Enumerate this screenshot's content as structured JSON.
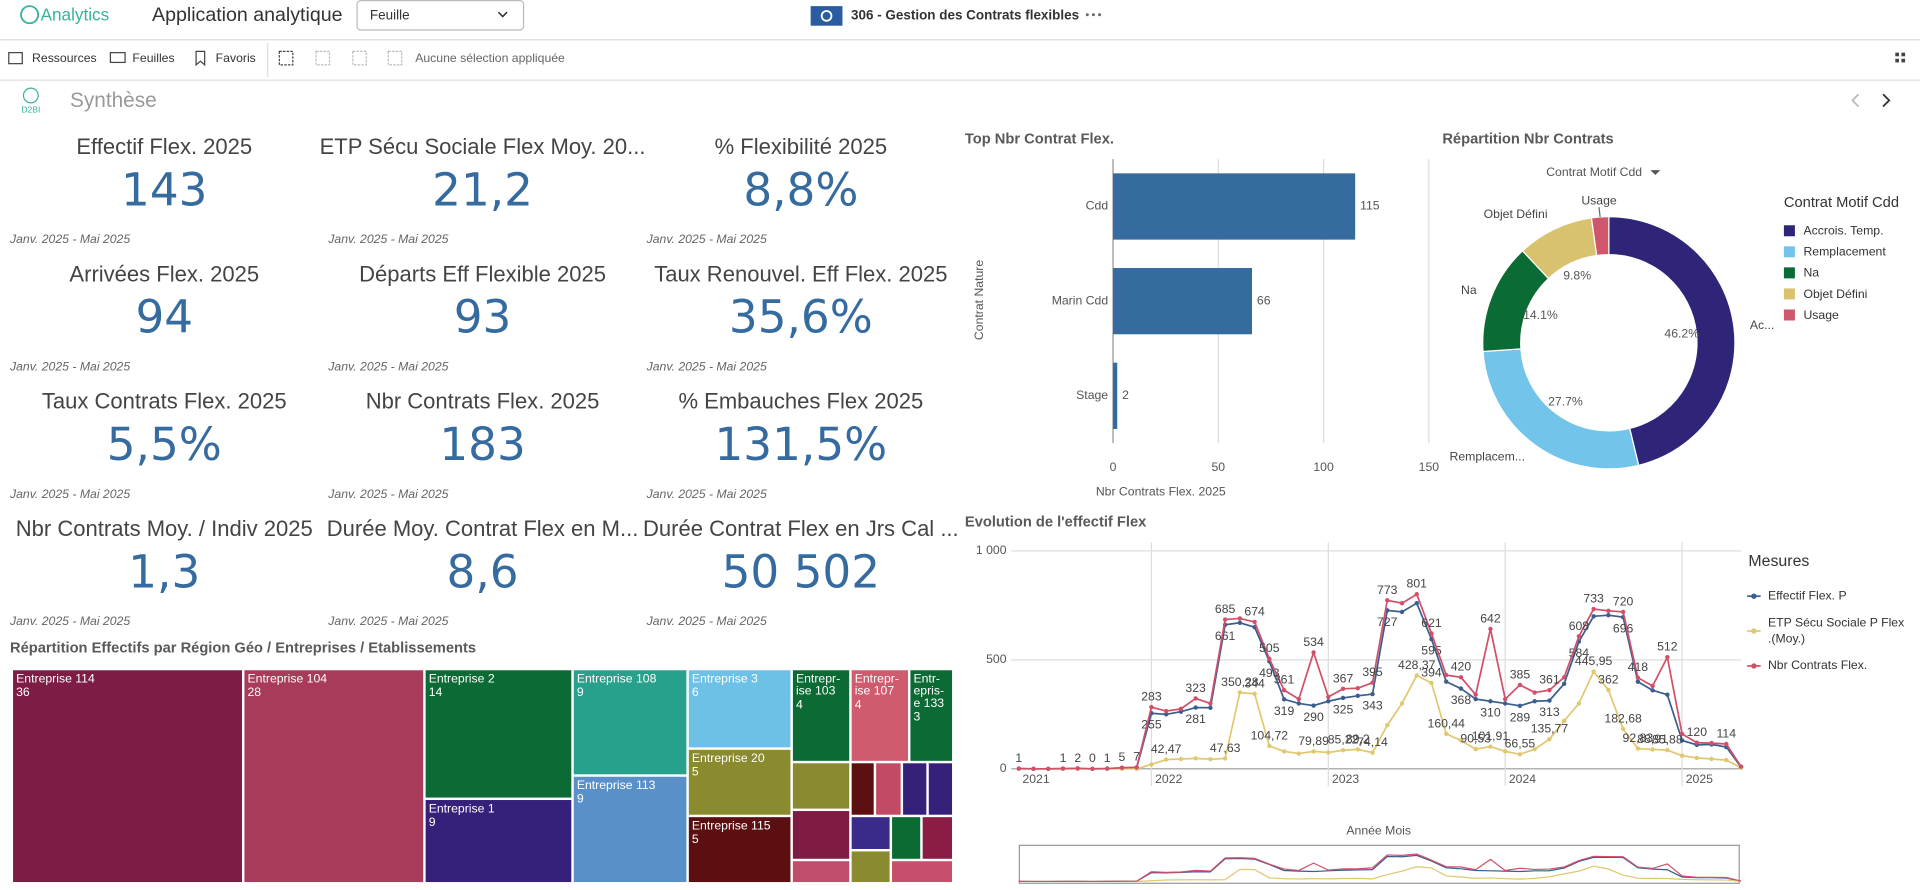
{
  "header": {
    "brand": "Analytics",
    "app": "Application analytique",
    "sheet_select": "Feuille",
    "document": "306 - Gestion des Contrats flexibles"
  },
  "toolbar": {
    "items": [
      "Ressources",
      "Feuilles",
      "Favoris"
    ],
    "selection": "Aucune sélection appliquée"
  },
  "sheet": {
    "logo": "D2BI",
    "title": "Synthèse"
  },
  "kpis": [
    {
      "title": "Effectif Flex. 2025",
      "value": "143",
      "period": "Janv. 2025 - Mai 2025"
    },
    {
      "title": "ETP Sécu Sociale Flex Moy. 20...",
      "value": "21,2",
      "period": "Janv. 2025 - Mai 2025"
    },
    {
      "title": "% Flexibilité 2025",
      "value": "8,8%",
      "period": "Janv. 2025 - Mai 2025"
    },
    {
      "title": "Arrivées Flex. 2025",
      "value": "94",
      "period": "Janv. 2025 - Mai 2025"
    },
    {
      "title": "Départs Eff Flexible 2025",
      "value": "93",
      "period": "Janv. 2025 - Mai 2025"
    },
    {
      "title": "Taux Renouvel. Eff Flex. 2025",
      "value": "35,6%",
      "period": "Janv. 2025 - Mai 2025"
    },
    {
      "title": "Taux Contrats Flex. 2025",
      "value": "5,5%",
      "period": "Janv. 2025 - Mai 2025"
    },
    {
      "title": "Nbr Contrats Flex. 2025",
      "value": "183",
      "period": "Janv. 2025 - Mai 2025"
    },
    {
      "title": "% Embauches Flex 2025",
      "value": "131,5%",
      "period": "Janv. 2025 - Mai 2025"
    },
    {
      "title": "Nbr Contrats Moy. / Indiv 2025",
      "value": "1,3",
      "period": "Janv. 2025 - Mai 2025"
    },
    {
      "title": "Durée Moy. Contrat Flex en M...",
      "value": "8,6",
      "period": "Janv. 2025 - Mai 2025"
    },
    {
      "title": "Durée Contrat Flex en Jrs Cal ...",
      "value": "50 502",
      "period": "Janv. 2025 - Mai 2025"
    }
  ],
  "chart_data": [
    {
      "type": "bar",
      "orientation": "horizontal",
      "title": "Top Nbr Contrat Flex.",
      "categories": [
        "Cdd",
        "Marin Cdd",
        "Stage"
      ],
      "values": [
        115,
        66,
        2
      ],
      "color": "#356b9e",
      "xlim": [
        0,
        150
      ],
      "xticks": [
        0,
        50,
        100,
        150
      ],
      "x_label": "Nbr Contrats Flex. 2025",
      "y_label": "Contrat Nature",
      "grid": true
    },
    {
      "type": "pie",
      "donut": true,
      "title": "Répartition Nbr Contrats",
      "selector": "Contrat Motif Cdd",
      "legend_title": "Contrat Motif Cdd",
      "categories": [
        "Accrois. Temp.",
        "Remplacement",
        "Na",
        "Objet Défini",
        "Usage"
      ],
      "values": [
        46.2,
        27.7,
        14.1,
        9.8,
        2.2
      ],
      "value_labels": [
        "46.2%",
        "27.7%",
        "14.1%",
        "9.8%",
        null
      ],
      "outer_labels": [
        "Ac...",
        "Remplacem...",
        "Na",
        "Objet Défini",
        "Usage"
      ],
      "colors": [
        "#2f2578",
        "#73c4ea",
        "#0b6b35",
        "#d8c26e",
        "#d0566c"
      ]
    },
    {
      "type": "line",
      "title": "Evolution de l'effectif Flex",
      "x_label": "Année Mois",
      "legend_title": "Mesures",
      "categories": [
        "2021",
        null,
        null,
        null,
        null,
        null,
        null,
        null,
        null,
        "2022",
        null,
        null,
        null,
        null,
        null,
        null,
        null,
        null,
        null,
        null,
        null,
        "2023",
        null,
        null,
        null,
        null,
        null,
        null,
        null,
        null,
        null,
        null,
        null,
        "2024",
        null,
        null,
        null,
        null,
        null,
        null,
        null,
        null,
        null,
        null,
        null,
        "2025",
        null,
        null,
        null,
        null
      ],
      "ylim": [
        0,
        1000
      ],
      "yticks": [
        0,
        500,
        {
          "value": 1000,
          "label": "1 000"
        }
      ],
      "grid": true,
      "series": [
        {
          "name": "Effectif Flex. P",
          "color": "#3b5e8c",
          "values": [
            1,
            0,
            0,
            1,
            1,
            0,
            1,
            4,
            5,
            255,
            250,
            262,
            281,
            280,
            661,
            670,
            650,
            493,
            319,
            300,
            290,
            310,
            325,
            335,
            343,
            727,
            720,
            760,
            595,
            400,
            368,
            320,
            310,
            300,
            289,
            310,
            313,
            390,
            584,
            700,
            705,
            696,
            400,
            360,
            340,
            130,
            110,
            112,
            100,
            8
          ],
          "value_labels": [
            null,
            null,
            null,
            null,
            null,
            null,
            null,
            null,
            null,
            "255",
            null,
            null,
            "281",
            null,
            "661",
            null,
            null,
            "493",
            "319",
            null,
            "290",
            null,
            "325",
            null,
            "343",
            "727",
            null,
            null,
            "595",
            null,
            "368",
            null,
            "310",
            null,
            "289",
            null,
            "313",
            null,
            "584",
            null,
            null,
            "696",
            null,
            null,
            null,
            null,
            null,
            null,
            null,
            null
          ]
        },
        {
          "name": "ETP Sécu Sociale P Flex .(Moy.)",
          "color": "#e0c870",
          "values": [
            0,
            0,
            0,
            0,
            0,
            0,
            0,
            0,
            0,
            20,
            42.47,
            45,
            48,
            44,
            47.63,
            350.28,
            344,
            104.72,
            80,
            70,
            79.89,
            75,
            85.22,
            89.2,
            74.14,
            200,
            300,
            428.37,
            394,
            160.44,
            130,
            90.53,
            101.91,
            80,
            66.55,
            90,
            135.77,
            220,
            300,
            445.95,
            362,
            182.68,
            92.83,
            88.91,
            85.88,
            60,
            50,
            45,
            40,
            5
          ],
          "value_labels": [
            null,
            null,
            null,
            null,
            null,
            null,
            null,
            null,
            null,
            null,
            "42,47",
            null,
            null,
            null,
            "47,63",
            "350,28",
            "344",
            "104,72",
            null,
            null,
            "79,89",
            null,
            "85,22",
            "89,2",
            "74,14",
            null,
            null,
            "428,37",
            "394",
            "160,44",
            null,
            "90,53",
            "101,91",
            null,
            "66,55",
            null,
            "135,77",
            null,
            null,
            "445,95",
            "362",
            "182,68",
            "92,83",
            "88,91",
            "85,88",
            null,
            null,
            null,
            null,
            null
          ]
        },
        {
          "name": "Nbr Contrats Flex.",
          "color": "#d0506a",
          "values": [
            1,
            0,
            0,
            1,
            2,
            0,
            1,
            5,
            7,
            283,
            265,
            275,
            323,
            300,
            685,
            690,
            674,
            505,
            361,
            320,
            534,
            330,
            367,
            370,
            395,
            773,
            760,
            801,
            621,
            430,
            420,
            340,
            642,
            320,
            385,
            350,
            361,
            420,
            608,
            733,
            725,
            720,
            418,
            380,
            512,
            160,
            120,
            118,
            114,
            10
          ],
          "value_labels": [
            "1",
            null,
            null,
            "1",
            "2",
            "0",
            "1",
            "5",
            "7",
            "283",
            null,
            null,
            "323",
            null,
            "685",
            null,
            "674",
            "505",
            "361",
            null,
            "534",
            null,
            "367",
            null,
            "395",
            "773",
            null,
            "801",
            "621",
            null,
            "420",
            null,
            "642",
            null,
            "385",
            null,
            "361",
            null,
            "608",
            "733",
            null,
            "720",
            "418",
            null,
            "512",
            null,
            "120",
            null,
            "114",
            null
          ]
        }
      ]
    },
    {
      "type": "treemap",
      "title": "Répartition Effectifs par Région Géo / Entreprises / Etablissements",
      "categories": [
        "Entreprise 114",
        "Entreprise 104",
        "Entreprise 2",
        "Entreprise 1",
        "Entreprise 108",
        "Entreprise 113",
        "Entreprise 3",
        "Entreprise 20",
        "Entreprise 115",
        "Entrepr-ise 103",
        "Entrepr-ise 107",
        "Entr-epris-e 133",
        null,
        null,
        null,
        null,
        null,
        null,
        null,
        null,
        null,
        null,
        null,
        null
      ],
      "values": [
        36,
        28,
        14,
        9,
        9,
        9,
        6,
        5,
        5,
        4,
        4,
        3,
        2,
        2,
        1,
        1,
        1,
        1,
        1,
        1,
        1,
        1,
        1,
        1
      ],
      "colors": [
        "#7d1c45",
        "#a83a5a",
        "#0c6b35",
        "#35217a",
        "#27a18c",
        "#5a90c8",
        "#6dc1e6",
        "#8a8a2e",
        "#5b0f10",
        "#0c6b35",
        "#d05a6e",
        "#0c6b35",
        "#8a8a30",
        "#801c44",
        "#c04d6b",
        "#5c1010",
        "#c24a64",
        "#35217a",
        "#35217a",
        "#3a2a8a",
        "#0b6b33",
        "#8a1c46",
        "#8a8a30",
        "#c84f6b"
      ]
    }
  ]
}
